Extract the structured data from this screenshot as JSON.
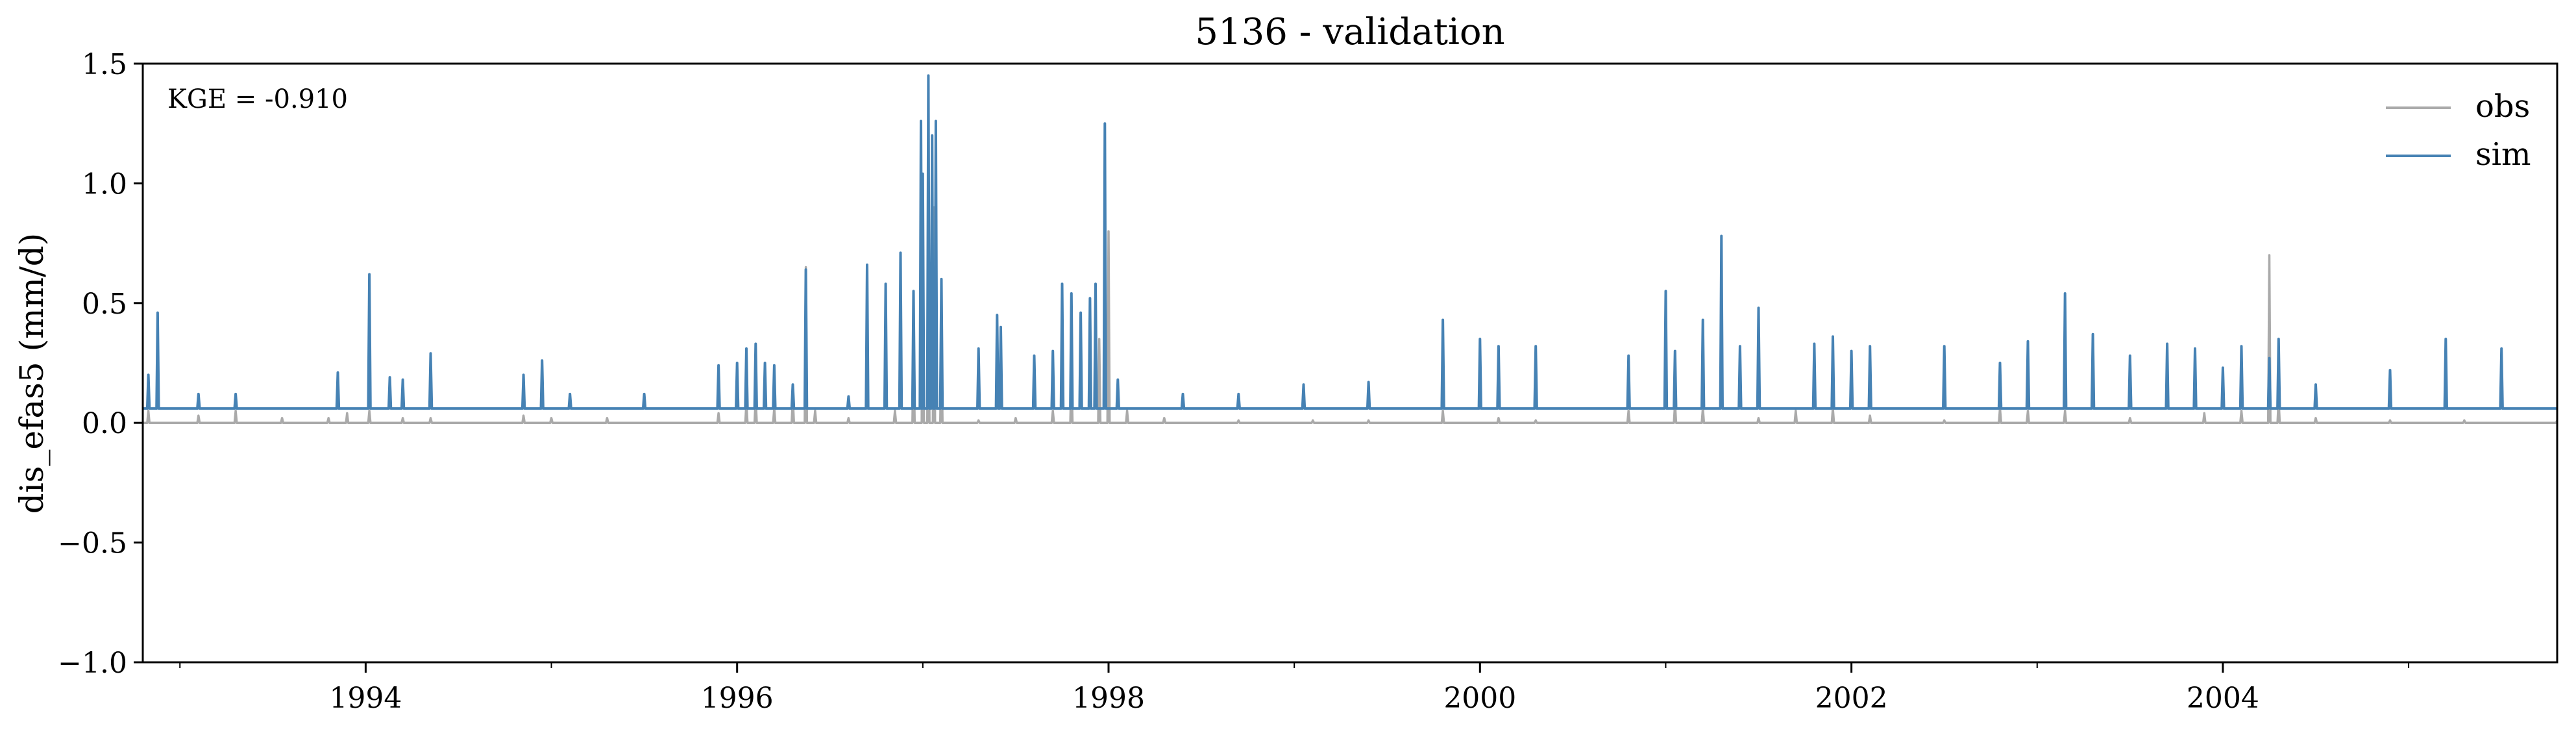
{
  "chart_data": {
    "type": "line",
    "title": "5136 - validation",
    "ylabel": "dis_efas5 (mm/d)",
    "xlabel": "",
    "ylim": [
      -1.0,
      1.5
    ],
    "xlim": [
      1992.8,
      2005.8
    ],
    "yticks": [
      -1.0,
      -0.5,
      0.0,
      0.5,
      1.0,
      1.5
    ],
    "ytick_labels": [
      "−1.0",
      "−0.5",
      "0.0",
      "0.5",
      "1.0",
      "1.5"
    ],
    "xticks": [
      1994,
      1996,
      1998,
      2000,
      2002,
      2004
    ],
    "xtick_labels": [
      "1994",
      "1996",
      "1998",
      "2000",
      "2002",
      "2004"
    ],
    "annotation": "KGE = -0.910",
    "legend": {
      "placement": "top-right",
      "entries": [
        {
          "label": "obs",
          "color": "#aaaaaa"
        },
        {
          "label": "sim",
          "color": "#4682b4"
        }
      ]
    },
    "grid": false,
    "series": [
      {
        "name": "obs",
        "color": "#aaaaaa",
        "baseline": 0.0,
        "x": [
          1992.8,
          1992.83,
          1992.88,
          1993.1,
          1993.3,
          1993.55,
          1993.8,
          1993.9,
          1994.02,
          1994.2,
          1994.35,
          1994.85,
          1995.0,
          1995.3,
          1995.9,
          1996.05,
          1996.1,
          1996.2,
          1996.3,
          1996.37,
          1996.42,
          1996.6,
          1996.85,
          1996.95,
          1997.0,
          1997.03,
          1997.06,
          1997.1,
          1997.3,
          1997.5,
          1997.7,
          1997.8,
          1997.95,
          1998.0,
          1998.1,
          1998.3,
          1998.7,
          1999.1,
          1999.4,
          1999.8,
          2000.1,
          2000.3,
          2000.8,
          2001.05,
          2001.2,
          2001.5,
          2001.7,
          2001.9,
          2002.1,
          2002.5,
          2002.8,
          2002.95,
          2003.15,
          2003.5,
          2003.9,
          2004.1,
          2004.25,
          2004.3,
          2004.5,
          2004.9,
          2005.3,
          2005.8
        ],
        "values": [
          0.0,
          0.05,
          0.0,
          0.03,
          0.05,
          0.02,
          0.02,
          0.04,
          0.05,
          0.02,
          0.02,
          0.03,
          0.02,
          0.02,
          0.04,
          0.08,
          0.1,
          0.06,
          0.1,
          0.65,
          0.05,
          0.02,
          0.05,
          0.3,
          1.0,
          0.8,
          0.9,
          0.35,
          0.01,
          0.02,
          0.05,
          0.2,
          0.35,
          0.8,
          0.05,
          0.02,
          0.01,
          0.01,
          0.01,
          0.05,
          0.02,
          0.01,
          0.05,
          0.08,
          0.06,
          0.02,
          0.05,
          0.06,
          0.03,
          0.01,
          0.06,
          0.05,
          0.05,
          0.02,
          0.04,
          0.05,
          0.7,
          0.1,
          0.02,
          0.01,
          0.01,
          0.01
        ]
      },
      {
        "name": "sim",
        "color": "#4682b4",
        "baseline": 0.06,
        "x": [
          1992.83,
          1992.88,
          1993.1,
          1993.3,
          1993.85,
          1994.02,
          1994.13,
          1994.2,
          1994.35,
          1994.85,
          1994.95,
          1995.1,
          1995.5,
          1995.9,
          1996.0,
          1996.05,
          1996.1,
          1996.15,
          1996.2,
          1996.3,
          1996.37,
          1996.6,
          1996.7,
          1996.8,
          1996.88,
          1996.95,
          1996.99,
          1997.0,
          1997.03,
          1997.05,
          1997.07,
          1997.1,
          1997.3,
          1997.4,
          1997.42,
          1997.6,
          1997.7,
          1997.75,
          1997.8,
          1997.85,
          1997.9,
          1997.93,
          1997.98,
          1998.05,
          1998.4,
          1998.7,
          1999.05,
          1999.4,
          1999.8,
          2000.0,
          2000.1,
          2000.3,
          2000.8,
          2001.0,
          2001.05,
          2001.2,
          2001.3,
          2001.4,
          2001.5,
          2001.8,
          2001.9,
          2002.0,
          2002.1,
          2002.5,
          2002.8,
          2002.95,
          2003.15,
          2003.3,
          2003.5,
          2003.7,
          2003.85,
          2004.0,
          2004.1,
          2004.25,
          2004.3,
          2004.5,
          2004.9,
          2005.2,
          2005.5,
          2005.8
        ],
        "values": [
          0.2,
          0.46,
          0.12,
          0.12,
          0.21,
          0.62,
          0.19,
          0.18,
          0.29,
          0.2,
          0.26,
          0.12,
          0.12,
          0.24,
          0.25,
          0.31,
          0.33,
          0.25,
          0.24,
          0.16,
          0.64,
          0.11,
          0.66,
          0.58,
          0.71,
          0.55,
          1.26,
          1.04,
          1.45,
          1.2,
          1.26,
          0.6,
          0.31,
          0.45,
          0.4,
          0.28,
          0.3,
          0.58,
          0.54,
          0.46,
          0.52,
          0.58,
          1.25,
          0.18,
          0.12,
          0.12,
          0.16,
          0.17,
          0.43,
          0.35,
          0.32,
          0.32,
          0.28,
          0.55,
          0.3,
          0.43,
          0.78,
          0.32,
          0.48,
          0.33,
          0.36,
          0.3,
          0.32,
          0.32,
          0.25,
          0.34,
          0.54,
          0.37,
          0.28,
          0.33,
          0.31,
          0.23,
          0.32,
          0.27,
          0.35,
          0.16,
          0.22,
          0.35,
          0.31,
          0.06
        ]
      }
    ]
  }
}
